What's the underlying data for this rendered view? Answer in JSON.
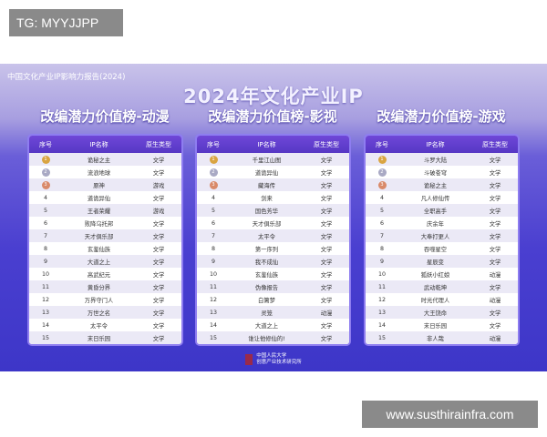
{
  "watermark_tag": "TG: MYYJJPP",
  "watermark_url": "www.susthirainfra.com",
  "report_label": "中国文化产业IP影响力报告(2024)",
  "title": "2024年文化产业IP",
  "headers": [
    "序号",
    "IP名称",
    "原生类型"
  ],
  "medal_colors": [
    "#d9a441",
    "#a9a9c4",
    "#d98a6a"
  ],
  "tables": [
    {
      "subtitle": "改编潜力价值榜-动漫",
      "rows": [
        [
          "1",
          "诡秘之主",
          "文学"
        ],
        [
          "2",
          "流浪地球",
          "文学"
        ],
        [
          "3",
          "原神",
          "游戏"
        ],
        [
          "4",
          "道诡异仙",
          "文学"
        ],
        [
          "5",
          "王者荣耀",
          "游戏"
        ],
        [
          "6",
          "败降乌托邦",
          "文学"
        ],
        [
          "7",
          "天才俱乐部",
          "文学"
        ],
        [
          "8",
          "玄鉴仙族",
          "文学"
        ],
        [
          "9",
          "大道之上",
          "文学"
        ],
        [
          "10",
          "高武纪元",
          "文学"
        ],
        [
          "11",
          "黄昏分界",
          "文学"
        ],
        [
          "12",
          "万界守门人",
          "文学"
        ],
        [
          "13",
          "万世之名",
          "文学"
        ],
        [
          "14",
          "太平令",
          "文学"
        ],
        [
          "15",
          "末日乐园",
          "文学"
        ]
      ]
    },
    {
      "subtitle": "改编潜力价值榜-影视",
      "rows": [
        [
          "1",
          "千里江山图",
          "文学"
        ],
        [
          "2",
          "道诡异仙",
          "文学"
        ],
        [
          "3",
          "藏海传",
          "文学"
        ],
        [
          "4",
          "剑来",
          "文学"
        ],
        [
          "5",
          "国色芳华",
          "文学"
        ],
        [
          "6",
          "天才俱乐部",
          "文学"
        ],
        [
          "7",
          "太平令",
          "文学"
        ],
        [
          "8",
          "第一序列",
          "文学"
        ],
        [
          "9",
          "我不成仙",
          "文学"
        ],
        [
          "10",
          "玄鉴仙族",
          "文学"
        ],
        [
          "11",
          "伪像报告",
          "文学"
        ],
        [
          "12",
          "白篱梦",
          "文学"
        ],
        [
          "13",
          "灵笼",
          "动漫"
        ],
        [
          "14",
          "大道之上",
          "文学"
        ],
        [
          "15",
          "谁让他修仙的!",
          "文学"
        ]
      ]
    },
    {
      "subtitle": "改编潜力价值榜-游戏",
      "rows": [
        [
          "1",
          "斗罗大陆",
          "文学"
        ],
        [
          "2",
          "斗破苍穹",
          "文学"
        ],
        [
          "3",
          "诡秘之主",
          "文学"
        ],
        [
          "4",
          "凡人修仙传",
          "文学"
        ],
        [
          "5",
          "全职高手",
          "文学"
        ],
        [
          "6",
          "庆余年",
          "文学"
        ],
        [
          "7",
          "大奉打更人",
          "文学"
        ],
        [
          "8",
          "吞噬星空",
          "文学"
        ],
        [
          "9",
          "星辰变",
          "文学"
        ],
        [
          "10",
          "狐妖小红娘",
          "动漫"
        ],
        [
          "11",
          "武动乾坤",
          "文学"
        ],
        [
          "12",
          "时光代理人",
          "动漫"
        ],
        [
          "13",
          "大王饶命",
          "文学"
        ],
        [
          "14",
          "末日乐园",
          "文学"
        ],
        [
          "15",
          "非人哉",
          "动漫"
        ]
      ]
    }
  ],
  "footer": {
    "line1": "中国人民大学",
    "line2": "创意产业技术研究所"
  }
}
